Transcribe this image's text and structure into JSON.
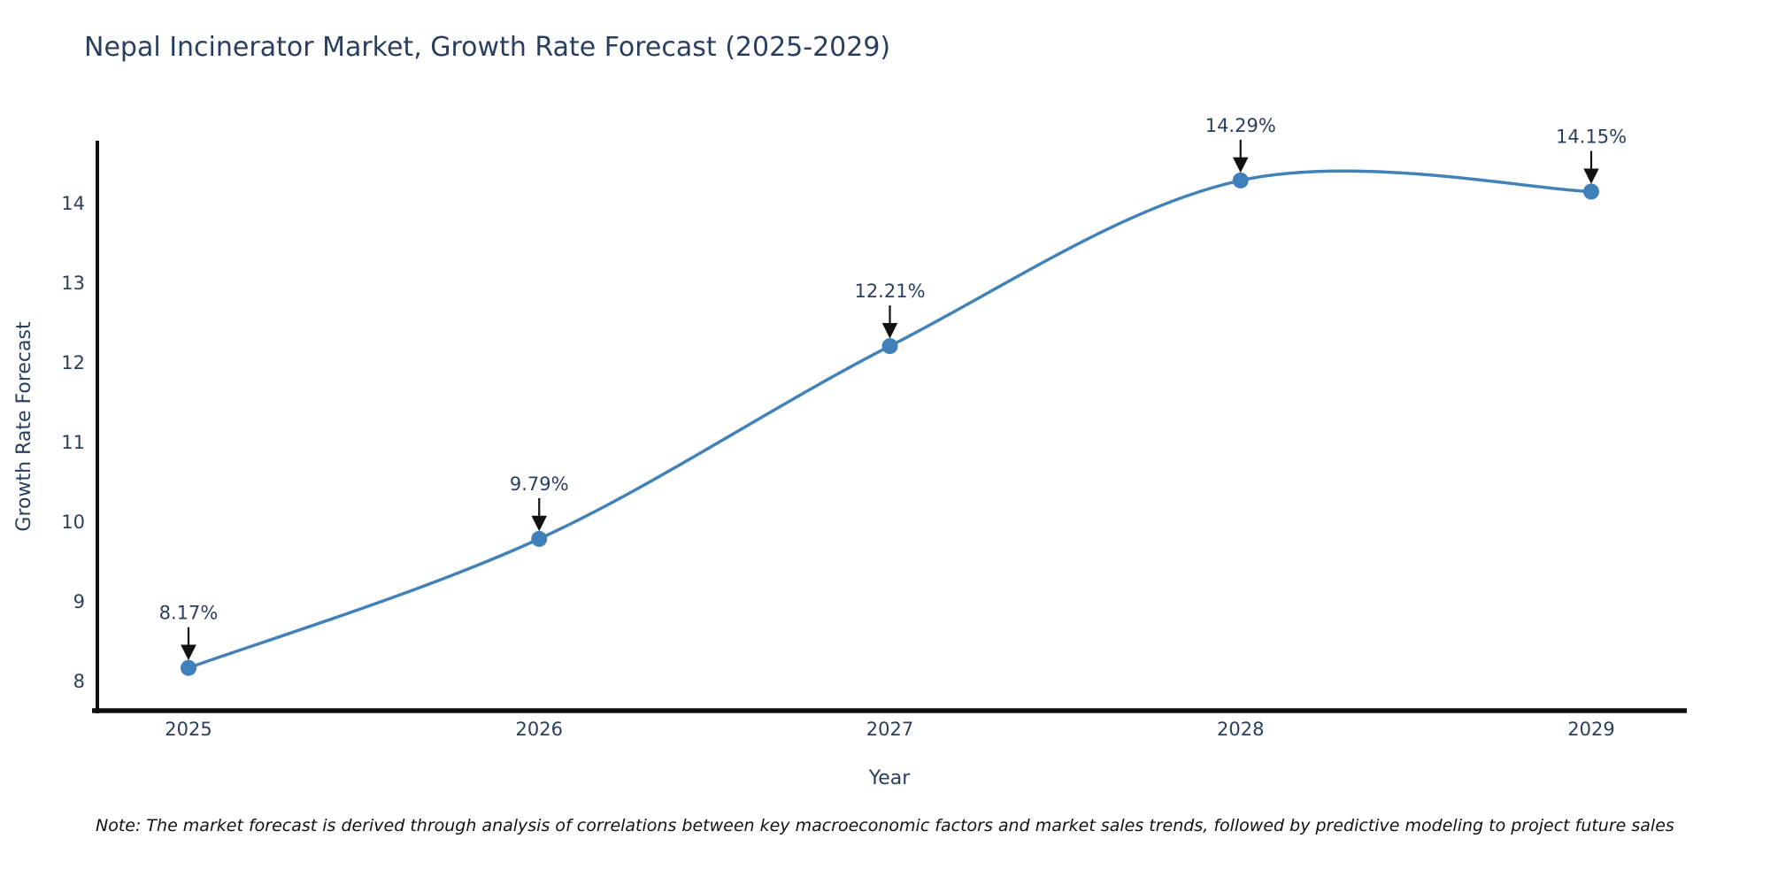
{
  "chart_data": {
    "type": "line",
    "title": "Nepal Incinerator Market, Growth Rate Forecast (2025-2029)",
    "xlabel": "Year",
    "ylabel": "Growth Rate Forecast",
    "x": [
      2025,
      2026,
      2027,
      2028,
      2029
    ],
    "values": [
      8.17,
      9.79,
      12.21,
      14.29,
      14.15
    ],
    "point_labels": [
      "8.17%",
      "9.79%",
      "12.21%",
      "14.29%",
      "14.15%"
    ],
    "xticks": [
      "2025",
      "2026",
      "2027",
      "2028",
      "2029"
    ],
    "yticks": [
      8,
      9,
      10,
      11,
      12,
      13,
      14
    ],
    "xlim": [
      2024.73,
      2029.27
    ],
    "ylim": [
      7.58,
      14.83
    ],
    "grid": false,
    "legend": "none",
    "line_shape": "spline",
    "colors": {
      "line": "#4282b8",
      "marker": "#4080ba",
      "axis": "#111111",
      "text": "#2a3f5f",
      "annotation_text": "#2a3f5f",
      "annotation_arrow": "#111111"
    }
  },
  "footnote": {
    "text": "Note: The market forecast is derived through analysis of correlations between key macroeconomic factors and market sales trends, followed by predictive modeling to project future sales"
  }
}
